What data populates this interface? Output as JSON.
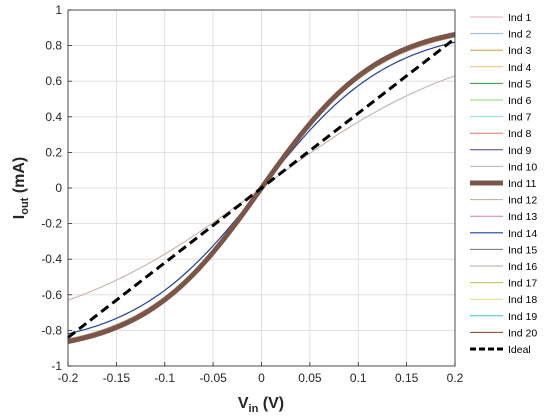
{
  "chart_data": {
    "type": "line",
    "title": "",
    "xlabel_main": "V",
    "xlabel_sub": "in",
    "xlabel_unit": " (V)",
    "ylabel_main": "I",
    "ylabel_sub": "out",
    "ylabel_unit": " (mA)",
    "xlim": [
      -0.2,
      0.2
    ],
    "ylim": [
      -1,
      1
    ],
    "xticks": [
      -0.2,
      -0.15,
      -0.1,
      -0.05,
      0,
      0.05,
      0.1,
      0.15,
      0.2
    ],
    "xtick_labels": [
      "-0.2",
      "-0.15",
      "-0.1",
      "-0.05",
      "0",
      "0.05",
      "0.1",
      "0.15",
      "0.2"
    ],
    "yticks": [
      -1,
      -0.8,
      -0.6,
      -0.4,
      -0.2,
      0,
      0.2,
      0.4,
      0.6,
      0.8,
      1
    ],
    "ytick_labels": [
      "-1",
      "-0.8",
      "-0.6",
      "-0.4",
      "-0.2",
      "0",
      "0.2",
      "0.4",
      "0.6",
      "0.8",
      "1"
    ],
    "grid": true,
    "legend_position": "right",
    "series": [
      {
        "name": "Ind 1",
        "color": "#e8a8b8",
        "width": 1.0,
        "dash": false,
        "amp": 0.92,
        "slope": 8.2
      },
      {
        "name": "Ind 2",
        "color": "#8fb8e0",
        "width": 1.0,
        "dash": false,
        "amp": 0.925,
        "slope": 8.0
      },
      {
        "name": "Ind 3",
        "color": "#c8a040",
        "width": 1.0,
        "dash": false,
        "amp": 0.93,
        "slope": 8.3
      },
      {
        "name": "Ind 4",
        "color": "#e8c070",
        "width": 1.0,
        "dash": false,
        "amp": 0.92,
        "slope": 8.1
      },
      {
        "name": "Ind 5",
        "color": "#2e9a3a",
        "width": 1.0,
        "dash": false,
        "amp": 0.925,
        "slope": 8.2
      },
      {
        "name": "Ind 6",
        "color": "#90d070",
        "width": 1.0,
        "dash": false,
        "amp": 0.93,
        "slope": 8.0
      },
      {
        "name": "Ind 7",
        "color": "#90d8ea",
        "width": 1.0,
        "dash": false,
        "amp": 0.92,
        "slope": 8.4
      },
      {
        "name": "Ind 8",
        "color": "#e07070",
        "width": 1.0,
        "dash": false,
        "amp": 0.935,
        "slope": 8.1
      },
      {
        "name": "Ind 9",
        "color": "#4a3a9a",
        "width": 1.0,
        "dash": false,
        "amp": 0.925,
        "slope": 8.3
      },
      {
        "name": "Ind 10",
        "color": "#b0b0d0",
        "width": 1.0,
        "dash": false,
        "amp": 0.93,
        "slope": 8.2
      },
      {
        "name": "Ind 11",
        "color": "#7a5548",
        "width": 5.0,
        "dash": false,
        "amp": 0.93,
        "slope": 8.2
      },
      {
        "name": "Ind 12",
        "color": "#c0a898",
        "width": 1.0,
        "dash": false,
        "amp": 0.92,
        "slope": 8.0
      },
      {
        "name": "Ind 13",
        "color": "#c880c0",
        "width": 1.0,
        "dash": false,
        "amp": 0.925,
        "slope": 8.3
      },
      {
        "name": "Ind 14",
        "color": "#1f3f9f",
        "width": 1.2,
        "dash": false,
        "amp": 0.905,
        "slope": 7.5
      },
      {
        "name": "Ind 15",
        "color": "#707070",
        "width": 1.0,
        "dash": false,
        "amp": 0.93,
        "slope": 8.1
      },
      {
        "name": "Ind 16",
        "color": "#c8b8b0",
        "width": 1.2,
        "dash": false,
        "amp": 0.88,
        "slope": 4.5
      },
      {
        "name": "Ind 17",
        "color": "#c0c040",
        "width": 1.0,
        "dash": false,
        "amp": 0.925,
        "slope": 8.2
      },
      {
        "name": "Ind 18",
        "color": "#d0e080",
        "width": 1.0,
        "dash": false,
        "amp": 0.92,
        "slope": 8.4
      },
      {
        "name": "Ind 19",
        "color": "#40b8d8",
        "width": 1.0,
        "dash": false,
        "amp": 0.93,
        "slope": 8.0
      },
      {
        "name": "Ind 20",
        "color": "#8a3a20",
        "width": 1.0,
        "dash": false,
        "amp": 0.925,
        "slope": 8.3
      },
      {
        "name": "Ideal",
        "color": "#000000",
        "width": 3.0,
        "dash": true,
        "linear_slope": 4.2
      }
    ]
  }
}
